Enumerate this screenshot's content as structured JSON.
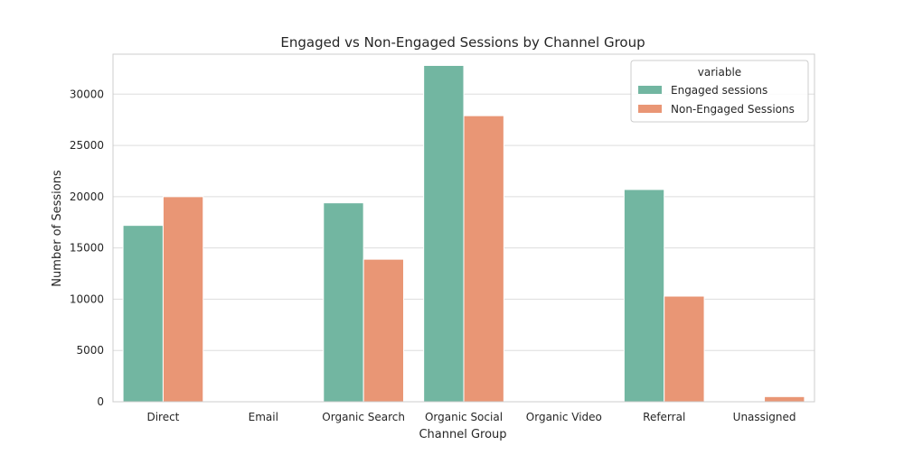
{
  "chart_data": {
    "type": "bar",
    "title": "Engaged vs Non-Engaged Sessions by Channel Group",
    "xlabel": "Channel Group",
    "ylabel": "Number of Sessions",
    "categories": [
      "Direct",
      "Email",
      "Organic Search",
      "Organic Social",
      "Organic Video",
      "Referral",
      "Unassigned"
    ],
    "series": [
      {
        "name": "Engaged sessions",
        "color": "#72b6a1",
        "values": [
          17200,
          0,
          19400,
          32800,
          0,
          20700,
          0
        ]
      },
      {
        "name": "Non-Engaged Sessions",
        "color": "#e99675",
        "values": [
          20000,
          0,
          13900,
          27900,
          0,
          10300,
          500
        ]
      }
    ],
    "ylim": [
      0,
      33900
    ],
    "yticks": [
      0,
      5000,
      10000,
      15000,
      20000,
      25000,
      30000
    ],
    "legend": {
      "title": "variable",
      "position": "upper-right"
    },
    "grid": "horizontal"
  }
}
